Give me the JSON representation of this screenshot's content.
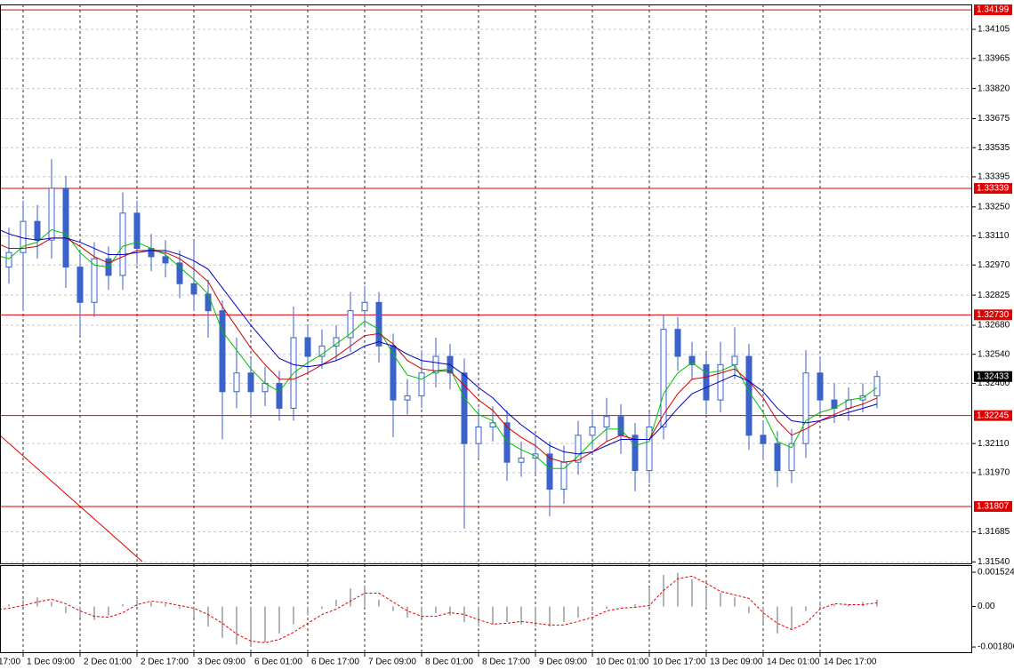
{
  "chart_data": [
    {
      "type": "candlestick",
      "categories": [
        "17:00",
        null,
        "1 Dec 09:00",
        null,
        null,
        null,
        "2 Dec 01:00",
        null,
        null,
        null,
        "2 Dec 17:00",
        null,
        null,
        null,
        "3 Dec 09:00",
        null,
        null,
        null,
        "6 Dec 01:00",
        null,
        null,
        null,
        "6 Dec 17:00",
        null,
        null,
        null,
        "7 Dec 09:00",
        null,
        null,
        null,
        "8 Dec 01:00",
        null,
        null,
        null,
        "8 Dec 17:00",
        null,
        null,
        null,
        "9 Dec 09:00",
        null,
        null,
        null,
        "10 Dec 01:00",
        null,
        null,
        null,
        "10 Dec 17:00",
        null,
        null,
        null,
        "13 Dec 09:00",
        null,
        null,
        null,
        "14 Dec 01:00",
        null,
        null,
        null,
        "14 Dec 17:00",
        null,
        null,
        null,
        null
      ],
      "open": [
        1.33,
        1.3296,
        1.3303,
        1.3318,
        1.3309,
        1.3334,
        1.3296,
        1.3279,
        1.33,
        1.3292,
        1.3322,
        1.3305,
        1.3301,
        1.3298,
        1.3288,
        1.3283,
        1.3275,
        1.3236,
        1.3245,
        1.3236,
        1.324,
        1.3228,
        1.3262,
        1.3253,
        1.3258,
        1.3262,
        1.3275,
        1.3279,
        1.3258,
        1.3232,
        1.3234,
        1.3245,
        1.3253,
        1.3245,
        1.3211,
        1.3219,
        1.3221,
        1.3202,
        1.3204,
        1.3206,
        1.3189,
        1.3202,
        1.3215,
        1.3219,
        1.3224,
        1.3215,
        1.3198,
        1.3219,
        1.3266,
        1.3253,
        1.3249,
        1.3232,
        1.3249,
        1.3253,
        1.3215,
        1.3211,
        1.3198,
        1.3211,
        1.3245,
        1.3232,
        1.3228,
        1.3232,
        1.3234
      ],
      "high": [
        1.332,
        1.3315,
        1.3328,
        1.3326,
        1.3348,
        1.334,
        1.3304,
        1.3308,
        1.3306,
        1.3332,
        1.3328,
        1.3312,
        1.3309,
        1.3304,
        1.3309,
        1.329,
        1.328,
        1.3262,
        1.3252,
        1.3248,
        1.3246,
        1.3277,
        1.3268,
        1.3266,
        1.3268,
        1.3284,
        1.3287,
        1.3284,
        1.3264,
        1.3242,
        1.3256,
        1.3262,
        1.3259,
        1.3252,
        1.3228,
        1.3229,
        1.3227,
        1.3212,
        1.3214,
        1.3212,
        1.321,
        1.3222,
        1.3227,
        1.3233,
        1.323,
        1.3221,
        1.3226,
        1.3273,
        1.3272,
        1.326,
        1.3255,
        1.326,
        1.3267,
        1.3259,
        1.3222,
        1.3217,
        1.3218,
        1.3256,
        1.3253,
        1.324,
        1.3238,
        1.324,
        1.3246
      ],
      "low": [
        1.3288,
        1.3288,
        1.3275,
        1.33,
        1.33,
        1.3286,
        1.3263,
        1.3272,
        1.3285,
        1.3285,
        1.3297,
        1.3294,
        1.3291,
        1.3281,
        1.3275,
        1.3262,
        1.3213,
        1.3228,
        1.3224,
        1.3229,
        1.3222,
        1.3222,
        1.3245,
        1.3247,
        1.3251,
        1.3255,
        1.3267,
        1.325,
        1.3214,
        1.3225,
        1.3228,
        1.3238,
        1.3237,
        1.317,
        1.3204,
        1.3212,
        1.3193,
        1.3195,
        1.3196,
        1.3176,
        1.3182,
        1.3196,
        1.3208,
        1.3212,
        1.3206,
        1.3188,
        1.3192,
        1.3213,
        1.3246,
        1.3242,
        1.3225,
        1.3226,
        1.3242,
        1.3208,
        1.3203,
        1.319,
        1.3192,
        1.3204,
        1.3225,
        1.3221,
        1.3222,
        1.3226,
        1.3228
      ],
      "close": [
        1.3296,
        1.3303,
        1.3318,
        1.3309,
        1.3334,
        1.3296,
        1.3279,
        1.33,
        1.3292,
        1.3322,
        1.3305,
        1.3301,
        1.3298,
        1.3288,
        1.3283,
        1.3275,
        1.3236,
        1.3245,
        1.3236,
        1.324,
        1.3228,
        1.3262,
        1.3253,
        1.3258,
        1.3262,
        1.3275,
        1.3279,
        1.3258,
        1.3232,
        1.3234,
        1.3245,
        1.3253,
        1.3245,
        1.3211,
        1.3219,
        1.3221,
        1.3202,
        1.3204,
        1.3206,
        1.3189,
        1.3202,
        1.3215,
        1.3219,
        1.3224,
        1.3215,
        1.3198,
        1.3219,
        1.3266,
        1.3253,
        1.3249,
        1.3232,
        1.3249,
        1.3253,
        1.3215,
        1.3211,
        1.3198,
        1.3211,
        1.3245,
        1.3232,
        1.3228,
        1.3232,
        1.3234,
        1.32433
      ],
      "candle_color": "#3a62c8",
      "series": [
        {
          "color": "#00c000",
          "values": [
            1.3302,
            1.33,
            1.3306,
            1.3308,
            1.3314,
            1.3312,
            1.3303,
            1.3297,
            1.3296,
            1.3306,
            1.3308,
            1.3305,
            1.3302,
            1.3296,
            1.329,
            1.3283,
            1.3265,
            1.3256,
            1.3247,
            1.324,
            1.3236,
            1.3245,
            1.325,
            1.3254,
            1.3259,
            1.3264,
            1.327,
            1.3266,
            1.3254,
            1.3244,
            1.3242,
            1.3246,
            1.3247,
            1.3233,
            1.3225,
            1.3222,
            1.3212,
            1.3208,
            1.3205,
            1.3199,
            1.3199,
            1.3205,
            1.3212,
            1.3218,
            1.3218,
            1.321,
            1.3212,
            1.3235,
            1.3245,
            1.325,
            1.3245,
            1.3246,
            1.3249,
            1.3236,
            1.3226,
            1.3212,
            1.3209,
            1.3222,
            1.3226,
            1.3228,
            1.3232,
            1.3233,
            1.3238
          ]
        },
        {
          "color": "#d00000",
          "values": [
            1.3308,
            1.3305,
            1.3305,
            1.3306,
            1.331,
            1.331,
            1.3306,
            1.3301,
            1.3298,
            1.3301,
            1.3304,
            1.3304,
            1.3303,
            1.33,
            1.3295,
            1.3289,
            1.3277,
            1.3267,
            1.3257,
            1.3249,
            1.3242,
            1.3242,
            1.3245,
            1.3249,
            1.3253,
            1.3258,
            1.3263,
            1.3264,
            1.3259,
            1.3251,
            1.3247,
            1.3246,
            1.3246,
            1.3239,
            1.3232,
            1.3227,
            1.3219,
            1.3214,
            1.321,
            1.3204,
            1.3202,
            1.3203,
            1.3207,
            1.3212,
            1.3215,
            1.3213,
            1.3213,
            1.3225,
            1.3235,
            1.3242,
            1.3243,
            1.3245,
            1.3247,
            1.3241,
            1.3233,
            1.3222,
            1.3215,
            1.3218,
            1.3222,
            1.3225,
            1.3228,
            1.323,
            1.3233
          ]
        },
        {
          "color": "#0000c8",
          "values": [
            1.3315,
            1.3312,
            1.331,
            1.3309,
            1.331,
            1.331,
            1.3308,
            1.3305,
            1.3302,
            1.3302,
            1.3303,
            1.3304,
            1.3304,
            1.3302,
            1.3299,
            1.3295,
            1.3286,
            1.3277,
            1.3268,
            1.326,
            1.3252,
            1.3249,
            1.3248,
            1.3249,
            1.3251,
            1.3254,
            1.3258,
            1.326,
            1.3258,
            1.3254,
            1.3251,
            1.325,
            1.3249,
            1.3244,
            1.3238,
            1.3233,
            1.3226,
            1.322,
            1.3215,
            1.321,
            1.3207,
            1.3206,
            1.3207,
            1.321,
            1.3213,
            1.3213,
            1.3213,
            1.322,
            1.3228,
            1.3235,
            1.3238,
            1.3241,
            1.3244,
            1.3241,
            1.3236,
            1.3228,
            1.3222,
            1.3221,
            1.3222,
            1.3224,
            1.3226,
            1.3228,
            1.323
          ]
        }
      ],
      "levels": [
        1.34199,
        1.33339,
        {
          "value": 1.3273,
          "label": "1.32730"
        },
        1.32245,
        1.31807
      ],
      "level_color": "#e00000",
      "ylim": [
        1.31533,
        1.34225
      ],
      "yticks": [
        1.34105,
        1.33965,
        {
          "value": 1.3382,
          "label": "1.33820"
        },
        1.33675,
        1.33535,
        1.33395,
        {
          "value": 1.3325,
          "label": "1.33250"
        },
        {
          "value": 1.3311,
          "label": "1.33110"
        },
        {
          "value": 1.3297,
          "label": "1.32970"
        },
        1.32825,
        {
          "value": 1.3268,
          "label": "1.32680"
        },
        {
          "value": 1.3254,
          "label": "1.32540"
        },
        {
          "value": 1.324,
          "label": "1.32400"
        },
        {
          "value": 1.3211,
          "label": "1.32110"
        },
        {
          "value": 1.3197,
          "label": "1.31970"
        },
        1.31685,
        {
          "value": 1.3154,
          "label": "1.31540"
        }
      ],
      "grid": true
    },
    {
      "type": "oscillator",
      "values": [
        -0.0001,
        0.0001,
        0.0003,
        0.0004,
        0.0002,
        -0.0003,
        -0.0005,
        -0.0006,
        -0.0004,
        0.0001,
        0.0003,
        0.0002,
        0.0001,
        -0.0001,
        -0.0005,
        -0.0009,
        -0.0014,
        -0.0017,
        -0.0018,
        -0.0016,
        -0.0012,
        -0.0008,
        -0.0004,
        -0.0001,
        0.0003,
        0.0008,
        0.0009,
        0.0003,
        -0.0002,
        -0.0005,
        -0.0005,
        -0.0003,
        -0.0004,
        -0.0007,
        -0.0009,
        -0.0008,
        -0.0007,
        -0.0008,
        -0.0009,
        -0.0009,
        -0.0007,
        -0.0005,
        -0.0002,
        -0.0001,
        0,
        0.0001,
        0.0008,
        0.0014,
        0.0015,
        0.0012,
        0.0008,
        0.0006,
        0.0004,
        -0.0003,
        -0.0008,
        -0.0012,
        -0.001,
        -0.0002,
        0.0002,
        0.0001,
        0.0001,
        0.0002,
        0.0003
      ],
      "color": "#b4b4b4",
      "signal": {
        "color": "#e00000",
        "values": [
          -0.00016,
          -8e-05,
          4e-05,
          0.0002,
          0.00032,
          0.00012,
          -0.0002,
          -0.00044,
          -0.00048,
          -0.00028,
          8e-05,
          0.00024,
          0.00016,
          4e-05,
          -8e-05,
          -0.00036,
          -0.00075,
          -0.00123,
          -0.00154,
          -0.00162,
          -0.00147,
          -0.00115,
          -0.00075,
          -0.00036,
          -0.00012,
          0.00024,
          0.00059,
          0.00059,
          0.0002,
          -0.0002,
          -0.00044,
          -0.00044,
          -0.00028,
          -0.00036,
          -0.00059,
          -0.00079,
          -0.00075,
          -0.00067,
          -0.00075,
          -0.00083,
          -0.00083,
          -0.00067,
          -0.00048,
          -0.0002,
          -8e-05,
          -4e-05,
          4e-05,
          0.00071,
          0.00123,
          0.00135,
          0.00103,
          0.00067,
          0.00051,
          0.00036,
          -0.00028,
          -0.00075,
          -0.00103,
          -0.00075,
          -0.00012,
          0.00012,
          8e-05,
          8e-05,
          0.00016
        ]
      },
      "ylim": [
        -0.00208,
        0.0018
      ],
      "yticks": [
        0.001524,
        {
          "value": 0,
          "label": "0.00"
        },
        -0.001806
      ]
    }
  ]
}
